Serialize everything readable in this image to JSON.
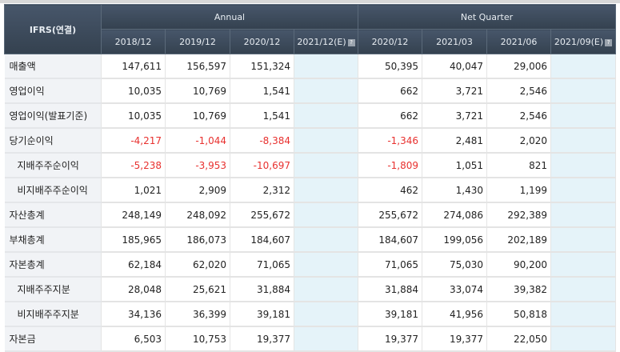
{
  "corner_label": "IFRS(연결)",
  "groups": {
    "annual": "Annual",
    "quarter": "Net Quarter"
  },
  "periods": [
    "2018/12",
    "2019/12",
    "2020/12",
    "2021/12(E)",
    "2020/12",
    "2021/03",
    "2021/06",
    "2021/09(E)"
  ],
  "help_icon": "question-icon",
  "colors": {
    "header": "#3b4856",
    "negative": "#e8312f",
    "estimate_bg": "#e5f3f9",
    "label_bg": "#f1f3f6"
  },
  "rows": [
    {
      "label": "매출액",
      "sub": false,
      "values": [
        "147,611",
        "156,597",
        "151,324",
        "",
        "50,395",
        "40,047",
        "29,006",
        ""
      ]
    },
    {
      "label": "영업이익",
      "sub": false,
      "values": [
        "10,035",
        "10,769",
        "1,541",
        "",
        "662",
        "3,721",
        "2,546",
        ""
      ]
    },
    {
      "label": "영업이익(발표기준)",
      "sub": false,
      "values": [
        "10,035",
        "10,769",
        "1,541",
        "",
        "662",
        "3,721",
        "2,546",
        ""
      ]
    },
    {
      "label": "당기순이익",
      "sub": false,
      "values": [
        "-4,217",
        "-1,044",
        "-8,384",
        "",
        "-1,346",
        "2,481",
        "2,020",
        ""
      ]
    },
    {
      "label": "지배주주순이익",
      "sub": true,
      "values": [
        "-5,238",
        "-3,953",
        "-10,697",
        "",
        "-1,809",
        "1,051",
        "821",
        ""
      ]
    },
    {
      "label": "비지배주주순이익",
      "sub": true,
      "values": [
        "1,021",
        "2,909",
        "2,312",
        "",
        "462",
        "1,430",
        "1,199",
        ""
      ]
    },
    {
      "label": "자산총계",
      "sub": false,
      "values": [
        "248,149",
        "248,092",
        "255,672",
        "",
        "255,672",
        "274,086",
        "292,389",
        ""
      ]
    },
    {
      "label": "부채총계",
      "sub": false,
      "values": [
        "185,965",
        "186,073",
        "184,607",
        "",
        "184,607",
        "199,056",
        "202,189",
        ""
      ]
    },
    {
      "label": "자본총계",
      "sub": false,
      "values": [
        "62,184",
        "62,020",
        "71,065",
        "",
        "71,065",
        "75,030",
        "90,200",
        ""
      ]
    },
    {
      "label": "지배주주지분",
      "sub": true,
      "values": [
        "28,048",
        "25,621",
        "31,884",
        "",
        "31,884",
        "33,074",
        "39,382",
        ""
      ]
    },
    {
      "label": "비지배주주지분",
      "sub": true,
      "values": [
        "34,136",
        "36,399",
        "39,181",
        "",
        "39,181",
        "41,956",
        "50,818",
        ""
      ]
    },
    {
      "label": "자본금",
      "sub": false,
      "values": [
        "6,503",
        "10,753",
        "19,377",
        "",
        "19,377",
        "19,377",
        "22,050",
        ""
      ]
    }
  ]
}
